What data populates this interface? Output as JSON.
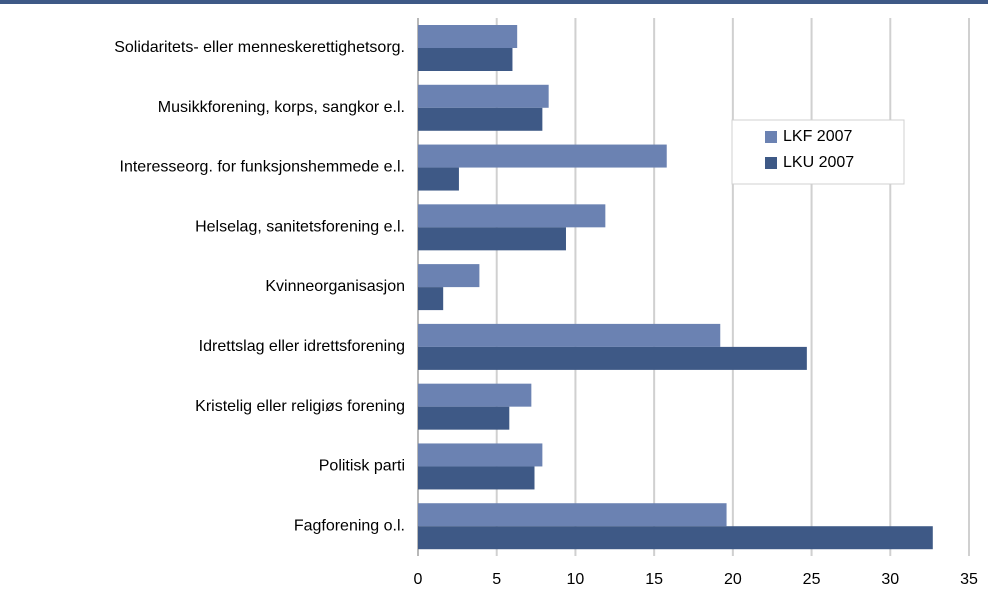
{
  "chart_data": {
    "type": "bar",
    "orientation": "horizontal",
    "categories": [
      "Solidaritets- eller menneskerettighetsorg.",
      "Musikkforening, korps, sangkor e.l.",
      "Interesseorg. for funksjonshemmede e.l.",
      "Helselag, sanitetsforening e.l.",
      "Kvinneorganisasjon",
      "Idrettslag eller idrettsforening",
      "Kristelig eller religiøs forening",
      "Politisk parti",
      "Fagforening o.l."
    ],
    "series": [
      {
        "name": "LKF 2007",
        "color": "#6b82b2",
        "values": [
          6.3,
          8.3,
          15.8,
          11.9,
          3.9,
          19.2,
          7.2,
          7.9,
          19.6
        ]
      },
      {
        "name": "LKU 2007",
        "color": "#3e5986",
        "values": [
          6.0,
          7.9,
          2.6,
          9.4,
          1.6,
          24.7,
          5.8,
          7.4,
          32.7
        ]
      }
    ],
    "xlim": [
      0,
      35
    ],
    "xticks": [
      0,
      5,
      10,
      15,
      20,
      25,
      30,
      35
    ],
    "grid": true,
    "legend": "upper right"
  }
}
